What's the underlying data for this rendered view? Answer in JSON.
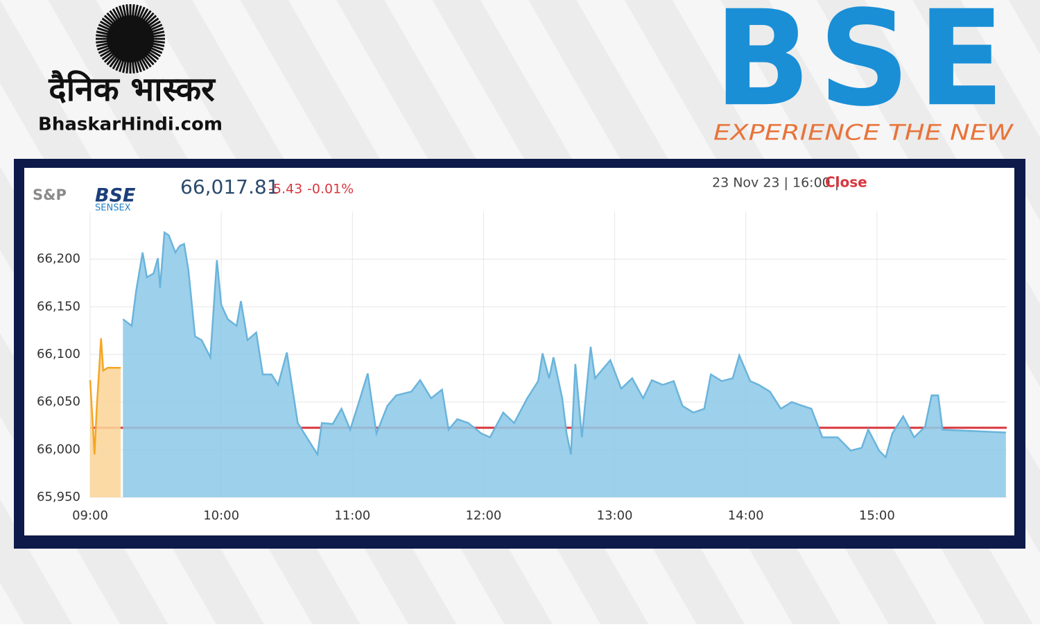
{
  "header": {
    "left_logo": {
      "hindi": "दैनिक भास्कर",
      "site": "BhaskarHindi.com"
    },
    "right_logo": {
      "mark": "BSE",
      "tagline": "EXPERIENCE THE NEW"
    }
  },
  "widget": {
    "brand": "S&P",
    "exchange": "BSE",
    "index": "SENSEX",
    "price": "66,017.81",
    "change": "-5.43",
    "change_pct": "-0.01%",
    "timestamp": "23 Nov 23 | 16:00 |",
    "status": "Close"
  },
  "chart_data": {
    "type": "area",
    "xlim": [
      "09:00",
      "16:00"
    ],
    "xticks": [
      "09:00",
      "10:00",
      "11:00",
      "12:00",
      "13:00",
      "14:00",
      "15:00"
    ],
    "ylim": [
      65950,
      66250
    ],
    "yticks": [
      {
        "value": 65950,
        "label": "65,950"
      },
      {
        "value": 66000,
        "label": "66,000"
      },
      {
        "value": 66050,
        "label": "66,050"
      },
      {
        "value": 66100,
        "label": "66,100"
      },
      {
        "value": 66150,
        "label": "66,150"
      },
      {
        "value": 66200,
        "label": "66,200"
      }
    ],
    "grid": true,
    "reference_line": {
      "value": 66023,
      "color": "#d9363e"
    },
    "series": [
      {
        "color": "#f5a623",
        "fill": "#fbd59a",
        "x": [
          "09:00",
          "09:01",
          "09:02",
          "09:03",
          "09:05",
          "09:06",
          "09:08",
          "09:14"
        ],
        "values": [
          66073,
          66035,
          65995,
          66043,
          66117,
          66083,
          66086,
          66086
        ]
      },
      {
        "color": "#6ab4dc",
        "fill": "#8fc9e7",
        "x": [
          "09:15",
          "09:19",
          "09:21",
          "09:24",
          "09:26",
          "09:29",
          "09:31",
          "09:32",
          "09:34",
          "09:36",
          "09:39",
          "09:41",
          "09:43",
          "09:45",
          "09:48",
          "09:51",
          "09:55",
          "09:58",
          "10:00",
          "10:03",
          "10:07",
          "10:09",
          "10:12",
          "10:16",
          "10:19",
          "10:23",
          "10:26",
          "10:30",
          "10:35",
          "10:38",
          "10:44",
          "10:46",
          "10:51",
          "10:55",
          "10:59",
          "11:03",
          "11:07",
          "11:11",
          "11:16",
          "11:20",
          "11:27",
          "11:31",
          "11:36",
          "11:41",
          "11:44",
          "11:48",
          "11:53",
          "11:59",
          "12:03",
          "12:09",
          "12:14",
          "12:20",
          "12:25",
          "12:27",
          "12:30",
          "12:32",
          "12:36",
          "12:38",
          "12:40",
          "12:42",
          "12:45",
          "12:49",
          "12:51",
          "12:58",
          "13:03",
          "13:08",
          "13:13",
          "13:17",
          "13:22",
          "13:27",
          "13:31",
          "13:36",
          "13:41",
          "13:44",
          "13:49",
          "13:54",
          "13:57",
          "14:02",
          "14:06",
          "14:11",
          "14:16",
          "14:21",
          "14:26",
          "14:30",
          "14:35",
          "14:42",
          "14:48",
          "14:53",
          "14:56",
          "15:01",
          "15:04",
          "15:07",
          "15:12",
          "15:17",
          "15:22",
          "15:25",
          "15:28",
          "15:30",
          "15:59"
        ],
        "values": [
          66137,
          66130,
          66166,
          66207,
          66181,
          66185,
          66201,
          66170,
          66228,
          66225,
          66207,
          66214,
          66216,
          66188,
          66119,
          66115,
          66097,
          66199,
          66152,
          66137,
          66130,
          66156,
          66115,
          66123,
          66079,
          66079,
          66068,
          66102,
          66028,
          66017,
          65995,
          66028,
          66027,
          66043,
          66021,
          66050,
          66080,
          66017,
          66046,
          66057,
          66061,
          66073,
          66054,
          66063,
          66021,
          66032,
          66028,
          66017,
          66013,
          66039,
          66028,
          66054,
          66072,
          66101,
          66075,
          66097,
          66054,
          66017,
          65995,
          66090,
          66013,
          66108,
          66075,
          66094,
          66064,
          66075,
          66054,
          66073,
          66068,
          66072,
          66046,
          66039,
          66043,
          66079,
          66072,
          66075,
          66099,
          66072,
          66068,
          66061,
          66043,
          66050,
          66046,
          66043,
          66013,
          66013,
          65999,
          66002,
          66021,
          65999,
          65992,
          66017,
          66035,
          66013,
          66024,
          66057,
          66057,
          66021,
          66018
        ]
      }
    ]
  }
}
